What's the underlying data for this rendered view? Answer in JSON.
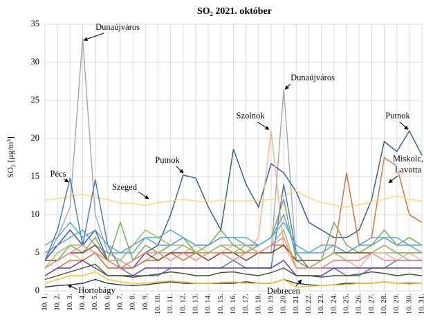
{
  "chart_data": {
    "type": "line",
    "title": "SO₂ 2021. október",
    "y_label": "SO₂ [µg/m³]",
    "categories": [
      "10. 1.",
      "10. 2.",
      "10. 3.",
      "10. 4.",
      "10. 5.",
      "10. 6.",
      "10. 7.",
      "10. 8.",
      "10. 9.",
      "10. 10.",
      "10. 11.",
      "10. 12.",
      "10. 13.",
      "10. 14.",
      "10. 15.",
      "10. 16.",
      "10. 17.",
      "10. 18.",
      "10. 19.",
      "10. 20.",
      "10. 21.",
      "10. 22.",
      "10. 23.",
      "10. 24.",
      "10. 25.",
      "10. 26.",
      "10. 27.",
      "10. 28.",
      "10. 29.",
      "10. 30.",
      "10. 31."
    ],
    "ylim": [
      0,
      35
    ],
    "yticks": [
      0,
      5,
      10,
      15,
      20,
      25,
      30,
      35
    ],
    "grid": true,
    "series": [
      {
        "color": "#a5a5a5",
        "values": [
          4,
          7,
          11,
          33.2,
          10,
          5,
          4,
          3,
          4,
          5,
          5,
          6,
          5,
          5,
          6,
          6,
          6,
          5,
          5,
          26.5,
          4,
          3,
          3,
          4,
          4,
          4,
          5,
          5,
          5,
          4,
          4
        ]
      },
      {
        "color": "#2e5597",
        "values": [
          4,
          6,
          8,
          6,
          8,
          4,
          3,
          3,
          5,
          6,
          10,
          15.2,
          14.8,
          11,
          8,
          18.6,
          14,
          11,
          16.7,
          15.5,
          13,
          9,
          8,
          7,
          7,
          8,
          12,
          19.6,
          18.3,
          21,
          17.8
        ]
      },
      {
        "color": "#f4b183",
        "values": [
          3,
          4,
          5,
          4,
          5,
          3,
          3,
          3,
          4,
          4,
          5,
          5,
          6,
          5,
          5,
          6,
          5,
          7,
          21,
          6,
          3,
          3,
          3,
          4,
          4,
          3,
          5,
          5,
          4,
          5,
          4
        ]
      },
      {
        "color": "#e0682b",
        "values": [
          2,
          3,
          4,
          4,
          5,
          3,
          3,
          3,
          4,
          4,
          5,
          4,
          5,
          5,
          6,
          5,
          5,
          5,
          6,
          6,
          4,
          3,
          4,
          5,
          15.5,
          6,
          7,
          17.5,
          16.4,
          10,
          9
        ]
      },
      {
        "color": "#ffd966",
        "values": [
          11.9,
          12.1,
          12.4,
          12.7,
          12.3,
          12,
          11.5,
          11.5,
          11.2,
          11.6,
          11.8,
          12,
          11.8,
          11.7,
          11.9,
          11.8,
          11.8,
          11.9,
          12,
          12.5,
          13.1,
          12.2,
          11.6,
          11.3,
          11,
          11.3,
          11.7,
          12,
          12.5,
          12,
          11.8
        ]
      },
      {
        "color": "#4472c4",
        "values": [
          4,
          8,
          14.8,
          6,
          14.6,
          6,
          3,
          2,
          2,
          2,
          3,
          3,
          3,
          3,
          3,
          4,
          3,
          3,
          3,
          14,
          5,
          3,
          3,
          3,
          2,
          2,
          3,
          3,
          4,
          4,
          4
        ]
      },
      {
        "color": "#1f3864",
        "values": [
          0.5,
          0.7,
          0.8,
          1,
          1.5,
          1,
          0.8,
          0.7,
          0.8,
          1,
          1.2,
          1,
          1,
          1,
          1,
          1,
          1.2,
          1,
          1,
          1.5,
          1,
          0.8,
          0.7,
          0.8,
          1,
          1,
          1,
          1.2,
          1,
          1,
          1
        ]
      },
      {
        "color": "#ffc000",
        "values": [
          1,
          1.5,
          2,
          2,
          2.5,
          1.5,
          1.2,
          1,
          1,
          1.2,
          1.3,
          1.2,
          1,
          1,
          1.1,
          1.2,
          1,
          1,
          1,
          1.5,
          0.5,
          0.6,
          0.7,
          0.8,
          0.8,
          1,
          1,
          1.2,
          1,
          0.9,
          1
        ]
      },
      {
        "color": "#70ad47",
        "values": [
          3,
          4,
          6,
          5,
          7,
          4,
          9,
          4,
          6,
          5,
          6,
          7,
          5,
          6,
          8,
          6,
          5,
          6,
          7,
          12,
          4,
          3,
          4,
          9,
          6,
          5,
          6,
          8,
          6,
          7,
          6
        ]
      },
      {
        "color": "#5b9bd5",
        "values": [
          5,
          6,
          7,
          8,
          6,
          5,
          5,
          6,
          7,
          6,
          6,
          7,
          6,
          6,
          7,
          7,
          6,
          6,
          7,
          10,
          5,
          5,
          5,
          6,
          5,
          6,
          6,
          7,
          6,
          6,
          5
        ]
      },
      {
        "color": "#7030a0",
        "values": [
          2,
          3,
          3,
          4,
          3,
          2,
          2,
          2,
          3,
          3,
          3,
          3,
          3,
          3,
          3,
          3,
          3,
          3,
          3,
          4,
          2,
          2,
          2,
          3,
          3,
          3,
          3,
          3,
          3,
          3,
          3
        ]
      },
      {
        "color": "#4bacc6",
        "values": [
          6,
          7,
          9,
          7,
          8,
          6,
          5,
          5,
          7,
          7,
          8,
          7,
          6,
          6,
          7,
          7,
          7,
          6,
          7,
          9,
          6,
          5,
          6,
          6,
          5,
          6,
          7,
          7,
          7,
          6,
          6
        ]
      },
      {
        "color": "#843c0c",
        "values": [
          4,
          4,
          5,
          5,
          6,
          4,
          3,
          4,
          5,
          4,
          5,
          5,
          5,
          4,
          5,
          5,
          4,
          5,
          5,
          6,
          4,
          4,
          4,
          5,
          5,
          5,
          5,
          6,
          5,
          5,
          5
        ]
      },
      {
        "color": "#9bbb59",
        "values": [
          3,
          5,
          6,
          6,
          5,
          4,
          4,
          6,
          8,
          7,
          6,
          6,
          5,
          5,
          6,
          5,
          6,
          5,
          6,
          8,
          3,
          3,
          4,
          5,
          4,
          4,
          5,
          6,
          5,
          5,
          5
        ]
      },
      {
        "color": "#375623",
        "values": [
          1.5,
          2,
          2.5,
          3,
          3.5,
          2,
          2,
          1.8,
          2,
          2.2,
          2.5,
          2.3,
          2,
          2,
          2.4,
          2.5,
          2.2,
          2,
          2.4,
          3,
          2,
          2,
          1.8,
          2,
          2,
          2.2,
          2.5,
          2.3,
          2,
          2.2,
          2
        ]
      },
      {
        "color": "#ff8080",
        "values": [
          3,
          4,
          5,
          6,
          5,
          4,
          3,
          4,
          5,
          5,
          4,
          5,
          4,
          5,
          5,
          4,
          5,
          5,
          6,
          7,
          3,
          3,
          3,
          4,
          4,
          4,
          5,
          4,
          4,
          4,
          4
        ]
      }
    ],
    "annotations": [
      "Dunaújváros",
      "Dunaújváros",
      "Szolnok",
      "Putnok",
      "Putnok",
      "Miskolc,",
      "Lavotta",
      "Szeged",
      "Pécs",
      "Hortobágy",
      "Debrecen"
    ]
  }
}
